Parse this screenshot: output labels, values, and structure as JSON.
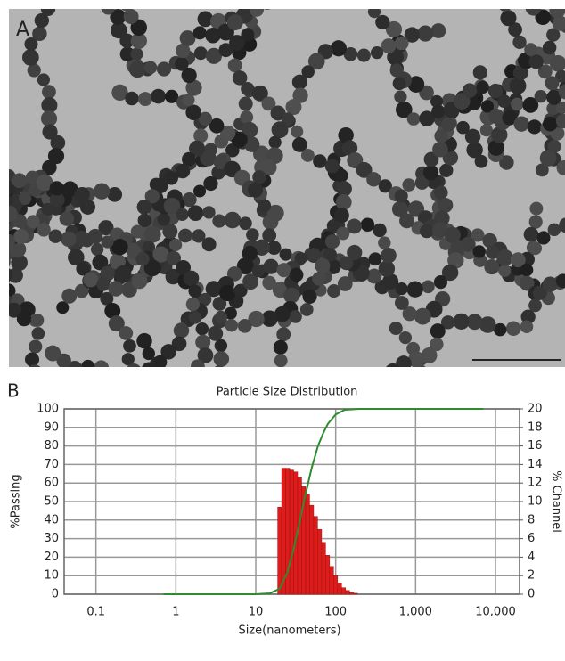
{
  "image_label": "A",
  "chart_data": {
    "type": "histogram",
    "panel_label": "B",
    "title": "Particle Size Distribution",
    "xlabel": "Size(nanometers)",
    "ylabel": "%Passing",
    "y2label": "% Channel",
    "xscale": "log",
    "xlim": [
      0.04,
      20000
    ],
    "xticks": [
      0.1,
      1,
      10,
      100,
      {
        "value": 1000,
        "label": "1,000"
      },
      {
        "value": 10000,
        "label": "10,000"
      }
    ],
    "ylim": [
      0,
      100
    ],
    "yticks": [
      0,
      10,
      20,
      30,
      40,
      50,
      60,
      70,
      80,
      90,
      100
    ],
    "y2lim": [
      0,
      20
    ],
    "y2ticks": [
      0,
      2,
      4,
      6,
      8,
      10,
      12,
      14,
      16,
      18,
      20
    ],
    "grid": true,
    "bins": [
      18.8,
      21.1,
      23.7,
      26.6,
      29.8,
      33.4,
      37.5,
      42.1,
      47.2,
      53.0,
      59.4,
      66.7,
      74.8,
      83.9,
      94.2,
      105.7,
      118.6,
      133.0,
      149.3,
      167.5,
      187.9
    ],
    "counts": [
      9.4,
      13.6,
      13.6,
      13.4,
      13.2,
      12.6,
      11.6,
      10.8,
      9.6,
      8.4,
      7.0,
      5.6,
      4.2,
      3.0,
      2.0,
      1.2,
      0.7,
      0.4,
      0.2,
      0.1
    ],
    "bar_color": "#dd1c1c",
    "bar_axis": "y2",
    "line": {
      "x": [
        0.7,
        10,
        15,
        20,
        25,
        30,
        35,
        40,
        50,
        60,
        70,
        80,
        100,
        130,
        200,
        7000
      ],
      "values": [
        0,
        0,
        0.5,
        3,
        12,
        25,
        38,
        50,
        68,
        80,
        87,
        92,
        97,
        99.5,
        100,
        100
      ],
      "color": "#2e8b2e"
    },
    "ylabel_color": "#3aa03a",
    "y2label_color": "#e03030",
    "title_color": "#1c1c80"
  }
}
